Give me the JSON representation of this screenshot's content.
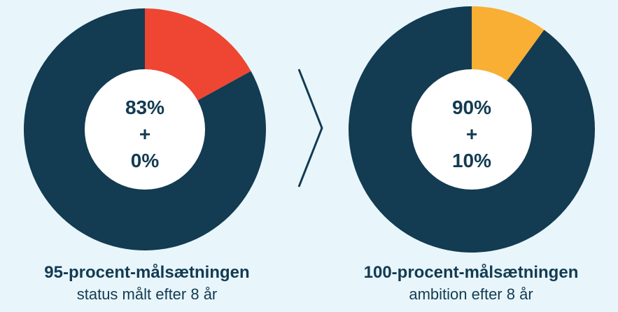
{
  "chart_data": [
    {
      "type": "pie",
      "title": "95-procent-målsætningen",
      "subtitle": "status målt efter 8 år",
      "center_label": [
        "83%",
        "+",
        "0%"
      ],
      "slices": [
        {
          "value": 83,
          "color": "#133b52"
        },
        {
          "value": 17,
          "color": "#ef4533"
        }
      ]
    },
    {
      "type": "pie",
      "title": "100-procent-målsætningen",
      "subtitle": "ambition efter 8 år",
      "center_label": [
        "90%",
        "+",
        "10%"
      ],
      "slices": [
        {
          "value": 90,
          "color": "#133b52"
        },
        {
          "value": 10,
          "color": "#f9ae34"
        }
      ]
    }
  ]
}
